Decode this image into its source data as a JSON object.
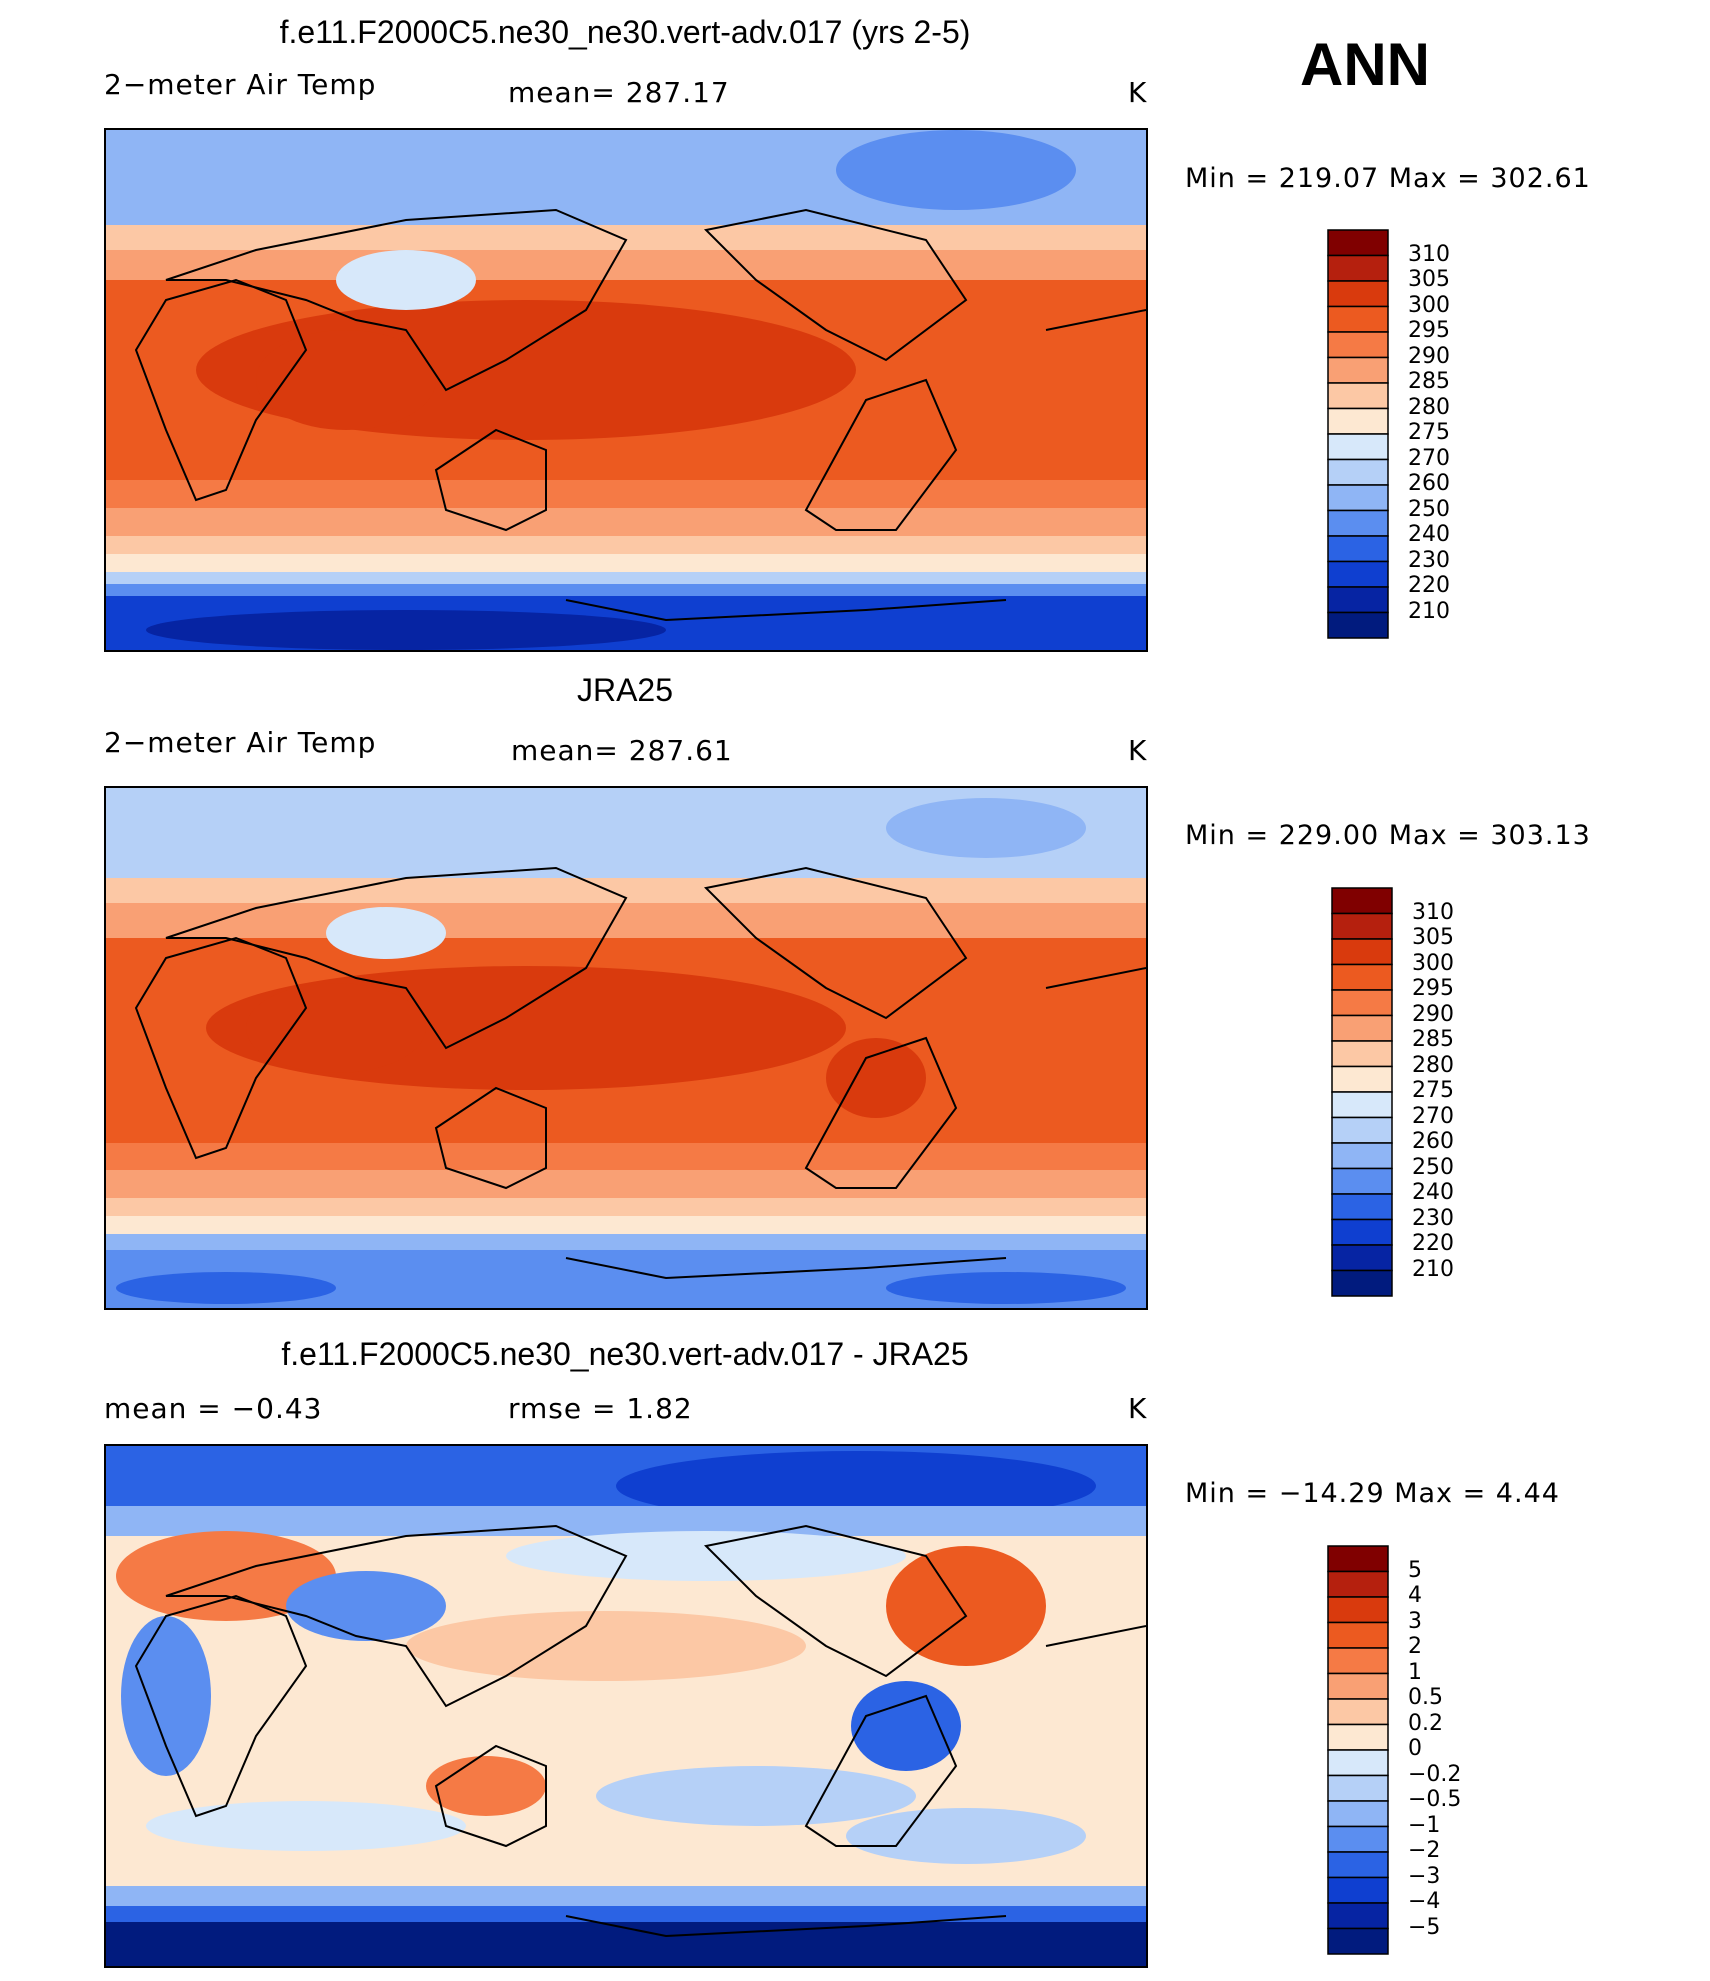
{
  "overall": {
    "season": "ANN"
  },
  "panels": [
    {
      "title": "f.e11.F2000C5.ne30_ne30.vert-adv.017 (yrs 2-5)",
      "left": "2−meter Air Temp",
      "center": "mean=  287.17",
      "right": "K",
      "minmax": "Min  =  219.07  Max  =  302.61",
      "palette": "abs",
      "levels": [
        "310",
        "305",
        "300",
        "295",
        "290",
        "285",
        "280",
        "275",
        "270",
        "260",
        "250",
        "240",
        "230",
        "220",
        "210"
      ]
    },
    {
      "title": "JRA25",
      "left": "2−meter Air Temp",
      "center": "mean=  287.61",
      "right": "K",
      "minmax": "Min  =  229.00  Max  =  303.13",
      "palette": "abs",
      "levels": [
        "310",
        "305",
        "300",
        "295",
        "290",
        "285",
        "280",
        "275",
        "270",
        "260",
        "250",
        "240",
        "230",
        "220",
        "210"
      ]
    },
    {
      "title": "f.e11.F2000C5.ne30_ne30.vert-adv.017 - JRA25",
      "left": "mean  =    −0.43",
      "center": "rmse  =     1.82",
      "right": "K",
      "minmax": "Min  =  −14.29  Max  =      4.44",
      "palette": "diff",
      "levels": [
        "5",
        "4",
        "3",
        "2",
        "1",
        "0.5",
        "0.2",
        "0",
        "−0.2",
        "−0.5",
        "−1",
        "−2",
        "−3",
        "−4",
        "−5"
      ]
    }
  ],
  "colors": {
    "scale": [
      "#800000",
      "#b5200e",
      "#d93a0d",
      "#ec5a20",
      "#f57a45",
      "#f9a074",
      "#fcc8a5",
      "#fde8d2",
      "#d7e8fa",
      "#b5d0f7",
      "#8fb5f5",
      "#5b8ef0",
      "#2b63e4",
      "#0f3fd0",
      "#0624a3",
      "#011b7e"
    ]
  }
}
